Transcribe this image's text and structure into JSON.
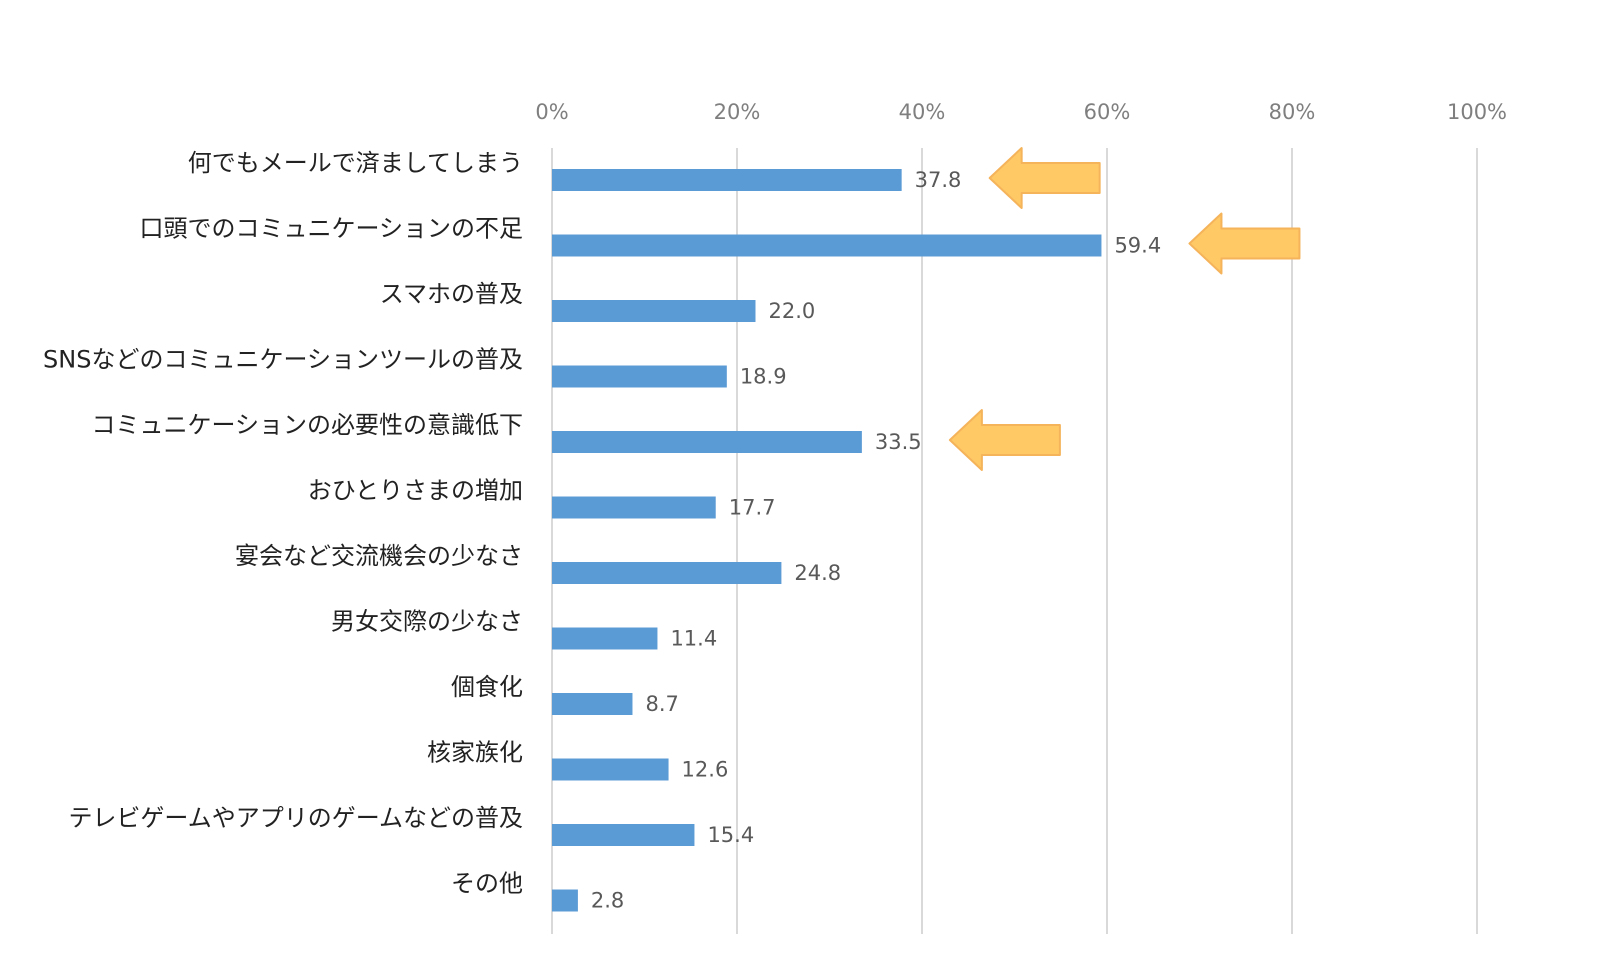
{
  "chart_data": {
    "type": "bar",
    "orientation": "horizontal",
    "categories": [
      "何でもメールで済ましてしまう",
      "口頭でのコミュニケーションの不足",
      "スマホの普及",
      "SNSなどのコミュニケーションツールの普及",
      "コミュニケーションの必要性の意識低下",
      "おひとりさまの増加",
      "宴会など交流機会の少なさ",
      "男女交際の少なさ",
      "個食化",
      "核家族化",
      "テレビゲームやアプリのゲームなどの普及",
      "その他"
    ],
    "values": [
      37.8,
      59.4,
      22.0,
      18.9,
      33.5,
      17.7,
      24.8,
      11.4,
      8.7,
      12.6,
      15.4,
      2.8
    ],
    "value_labels": [
      "37.8",
      "59.4",
      "22.0",
      "18.9",
      "33.5",
      "17.7",
      "24.8",
      "11.4",
      "8.7",
      "12.6",
      "15.4",
      "2.8"
    ],
    "xlim": [
      0,
      100
    ],
    "x_ticks": [
      "0%",
      "20%",
      "40%",
      "60%",
      "80%",
      "100%"
    ],
    "axis_position": "top",
    "grid": true,
    "bar_color": "#5b9bd5",
    "highlight_arrow_color": "#ffc966",
    "highlighted_categories": [
      0,
      1,
      4
    ],
    "title": "",
    "xlabel": "",
    "ylabel": ""
  }
}
